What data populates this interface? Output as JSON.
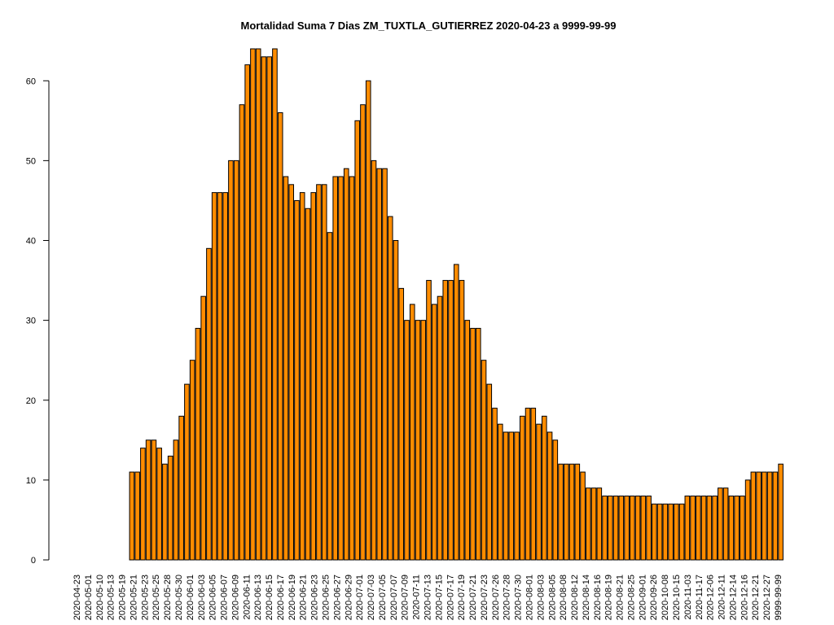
{
  "chart_data": {
    "type": "bar",
    "title": "Mortalidad Suma 7 Dias ZM_TUXTLA_GUTIERREZ 2020-04-23 a 9999-99-99",
    "xlabel": "",
    "ylabel": "",
    "ylim": [
      0,
      64
    ],
    "yticks": [
      0,
      10,
      20,
      30,
      40,
      50,
      60
    ],
    "bar_color": "#ff8c00",
    "grid": false,
    "legend": "none",
    "x_tick_labels": [
      "2020-04-23",
      "2020-05-01",
      "2020-05-10",
      "2020-05-13",
      "2020-05-19",
      "2020-05-21",
      "2020-05-23",
      "2020-05-25",
      "2020-05-28",
      "2020-05-30",
      "2020-06-01",
      "2020-06-03",
      "2020-06-05",
      "2020-06-07",
      "2020-06-09",
      "2020-06-11",
      "2020-06-13",
      "2020-06-15",
      "2020-06-17",
      "2020-06-19",
      "2020-06-21",
      "2020-06-23",
      "2020-06-25",
      "2020-06-27",
      "2020-06-29",
      "2020-07-01",
      "2020-07-03",
      "2020-07-05",
      "2020-07-07",
      "2020-07-09",
      "2020-07-11",
      "2020-07-13",
      "2020-07-15",
      "2020-07-17",
      "2020-07-19",
      "2020-07-21",
      "2020-07-23",
      "2020-07-26",
      "2020-07-28",
      "2020-07-30",
      "2020-08-01",
      "2020-08-03",
      "2020-08-05",
      "2020-08-08",
      "2020-08-12",
      "2020-08-14",
      "2020-08-16",
      "2020-08-19",
      "2020-08-21",
      "2020-08-25",
      "2020-09-01",
      "2020-09-26",
      "2020-10-08",
      "2020-10-15",
      "2020-11-03",
      "2020-11-17",
      "2020-12-06",
      "2020-12-11",
      "2020-12-14",
      "2020-12-16",
      "2020-12-21",
      "2020-12-27",
      "9999-99-99"
    ],
    "values": [
      0,
      0,
      0,
      0,
      0,
      0,
      0,
      0,
      0,
      0,
      11,
      11,
      14,
      15,
      15,
      14,
      12,
      13,
      15,
      18,
      22,
      25,
      29,
      33,
      39,
      46,
      46,
      46,
      50,
      50,
      57,
      62,
      64,
      64,
      63,
      63,
      64,
      56,
      48,
      47,
      45,
      46,
      44,
      46,
      47,
      47,
      41,
      48,
      48,
      49,
      48,
      55,
      57,
      60,
      50,
      49,
      49,
      43,
      40,
      34,
      30,
      32,
      30,
      30,
      35,
      32,
      33,
      35,
      35,
      37,
      35,
      30,
      29,
      29,
      25,
      22,
      19,
      17,
      16,
      16,
      16,
      18,
      19,
      19,
      17,
      18,
      16,
      15,
      12,
      12,
      12,
      12,
      11,
      9,
      9,
      9,
      8,
      8,
      8,
      8,
      8,
      8,
      8,
      8,
      8,
      7,
      7,
      7,
      7,
      7,
      7,
      8,
      8,
      8,
      8,
      8,
      8,
      9,
      9,
      8,
      8,
      8,
      10,
      11,
      11,
      11,
      11,
      11,
      12
    ]
  }
}
